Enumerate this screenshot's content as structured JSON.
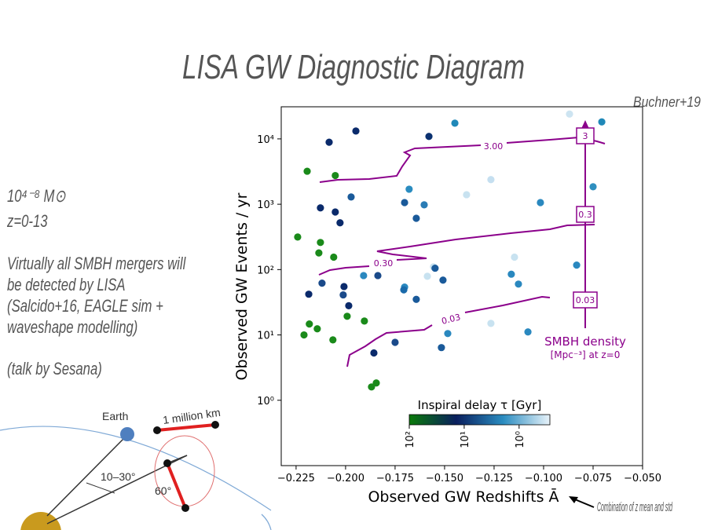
{
  "slide": {
    "title": "LISA GW Diagnostic Diagram",
    "credit": "Buchner+19",
    "mass_range": "10⁴⁻⁸ M⊙",
    "redshift_range": "z=0-13",
    "claim": "Virtually all SMBH mergers will be detected by LISA (Salcido+16, EAGLE sim + waveshape modelling)",
    "talk": "(talk by Sesana)",
    "x_note": "Combination of z mean and std"
  },
  "diagram": {
    "earth": "Earth",
    "distance": "1 million km",
    "angle_ecliptic": "10–30°",
    "angle_triangle": "60°"
  },
  "chart_data": {
    "type": "scatter",
    "x_label": "Observed GW Redshifts Ā",
    "y_label": "Observed GW Events / yr",
    "x": [
      -0.0869,
      -0.0706,
      -0.1448,
      -0.1948,
      -0.1579,
      -0.2083,
      -0.2194,
      -0.2052,
      -0.1266,
      -0.075,
      -0.1679,
      -0.1389,
      -0.1972,
      -0.1702,
      -0.1603,
      -0.1016,
      -0.2127,
      -0.2052,
      -0.1643,
      -0.2028,
      -0.2242,
      -0.2127,
      -0.2135,
      -0.206,
      -0.1147,
      -0.0833,
      -0.1556,
      -0.1548,
      -0.1587,
      -0.1909,
      -0.1837,
      -0.1163,
      -0.1508,
      -0.2119,
      -0.1127,
      -0.2008,
      -0.1702,
      -0.1706,
      -0.2186,
      -0.2012,
      -0.1643,
      -0.1984,
      -0.1992,
      -0.1905,
      -0.1266,
      -0.2183,
      -0.2143,
      -0.221,
      -0.1484,
      -0.1079,
      -0.2064,
      -0.175,
      -0.1516,
      -0.1857,
      -0.1845,
      -0.1869
    ],
    "series": [
      {
        "values": [
          24000,
          18200,
          17400,
          13200,
          10900,
          8900,
          3200,
          2750,
          2380,
          1850,
          1700,
          1400,
          1290,
          1060,
          980,
          1060,
          880,
          760,
          610,
          520,
          315,
          260,
          180,
          155,
          155,
          117,
          110,
          105,
          79,
          81,
          81,
          85,
          69,
          62,
          60,
          55,
          54,
          49,
          42,
          41,
          35,
          28,
          19.3,
          16.3,
          15,
          14.7,
          12.4,
          10,
          10.5,
          11.1,
          8.4,
          7.7,
          6.4,
          5.3,
          1.84,
          1.6
        ],
        "colors": [
          "#cde4f1",
          "#1f88b8",
          "#1f88b8",
          "#0a2a6b",
          "#0b3170",
          "#0a2a6b",
          "#1a8a1a",
          "#1a8a1a",
          "#c5dff0",
          "#2f8fbf",
          "#2a8cc0",
          "#c8e2f0",
          "#1a5a9a",
          "#1a5a9a",
          "#2a7cb5",
          "#2a88bf",
          "#0a2a6b",
          "#0a2a6b",
          "#1a5a9a",
          "#0a2a6b",
          "#1a8a1a",
          "#1a8a1a",
          "#1a8a1a",
          "#1a8a1a",
          "#c8e2f0",
          "#2a88bf",
          "#c8e2f0",
          "#1a5a9a",
          "#c8e2f0",
          "#2a88bf",
          "#1a4a8a",
          "#2a88bf",
          "#1a5a9a",
          "#1a4a8a",
          "#2a88bf",
          "#0a2a6b",
          "#2a88bf",
          "#1a6aaa",
          "#0a2a6b",
          "#1a4a8a",
          "#1a5a9a",
          "#0a2a6b",
          "#1a8a1a",
          "#1a8a1a",
          "#c8e2f0",
          "#1a8a1a",
          "#1a8a1a",
          "#1a8a1a",
          "#2a88bf",
          "#2a88bf",
          "#1a8a1a",
          "#1a4a8a",
          "#1a5a9a",
          "#0a2a6b",
          "#1a8a1a",
          "#1a8a1a"
        ]
      }
    ],
    "xlim": [
      -0.2325,
      -0.05
    ],
    "xticks": [
      {
        "value": -0.225,
        "label": "−0.225"
      },
      {
        "value": -0.2,
        "label": "−0.200"
      },
      {
        "value": -0.175,
        "label": "−0.175"
      },
      {
        "value": -0.15,
        "label": "−0.150"
      },
      {
        "value": -0.125,
        "label": "−0.125"
      },
      {
        "value": -0.1,
        "label": "−0.100"
      },
      {
        "value": -0.075,
        "label": "−0.075"
      },
      {
        "value": -0.05,
        "label": "−0.050"
      }
    ],
    "ylim": [
      0.1,
      31000
    ],
    "log_y": true,
    "yticks": [
      {
        "value": 1,
        "label": "10⁰"
      },
      {
        "value": 10,
        "label": "10¹"
      },
      {
        "value": 100,
        "label": "10²"
      },
      {
        "value": 1000,
        "label": "10³"
      },
      {
        "value": 10000,
        "label": "10⁴"
      }
    ],
    "contour_labels": [
      "3.00",
      "0.30",
      "0.03"
    ],
    "density_levels": [
      "3",
      "0.3",
      "0.03"
    ],
    "density_title": "SMBH density",
    "density_unit": "[Mpc⁻³] at z=0",
    "contour_color": "#8b008b",
    "colorbar": {
      "label": "Inspiral delay τ [Gyr]",
      "lim": [
        100,
        0.275
      ],
      "log": true,
      "ticks": [
        {
          "value": 100,
          "label": "10²"
        },
        {
          "value": 10,
          "label": "10¹"
        },
        {
          "value": 1,
          "label": "10⁰"
        }
      ],
      "colors": [
        "#0a7a0a",
        "#0a1f5e",
        "#2a8cc0",
        "#e8f3fa"
      ]
    }
  }
}
